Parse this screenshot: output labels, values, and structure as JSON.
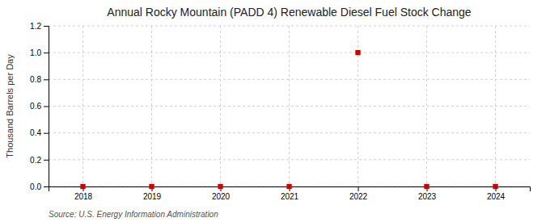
{
  "chart_data": {
    "type": "scatter",
    "title": "Annual Rocky Mountain (PADD 4) Renewable Diesel Fuel Stock Change",
    "y_label": "Thousand Barrels per Day",
    "source": "Source: U.S. Energy Information Administration",
    "x": [
      2018,
      2019,
      2020,
      2021,
      2022,
      2023,
      2024
    ],
    "values": [
      0.0,
      0.0,
      0.0,
      0.0,
      1.0,
      0.0,
      0.0
    ],
    "xlim": [
      2017.5,
      2024.5
    ],
    "xticks": [
      2018,
      2019,
      2020,
      2021,
      2022,
      2023,
      2024
    ],
    "ylim": [
      0.0,
      1.2
    ],
    "yticks": [
      {
        "value": 0.0,
        "label": "0.0"
      },
      {
        "value": 0.2,
        "label": "0.2"
      },
      {
        "value": 0.4,
        "label": "0.4"
      },
      {
        "value": 0.6,
        "label": "0.6"
      },
      {
        "value": 0.8,
        "label": "0.8"
      },
      {
        "value": 1.0,
        "label": "1.0"
      },
      {
        "value": 1.2,
        "label": "1.2"
      }
    ],
    "color": "#cc0000",
    "marker": "square",
    "grid": true
  }
}
